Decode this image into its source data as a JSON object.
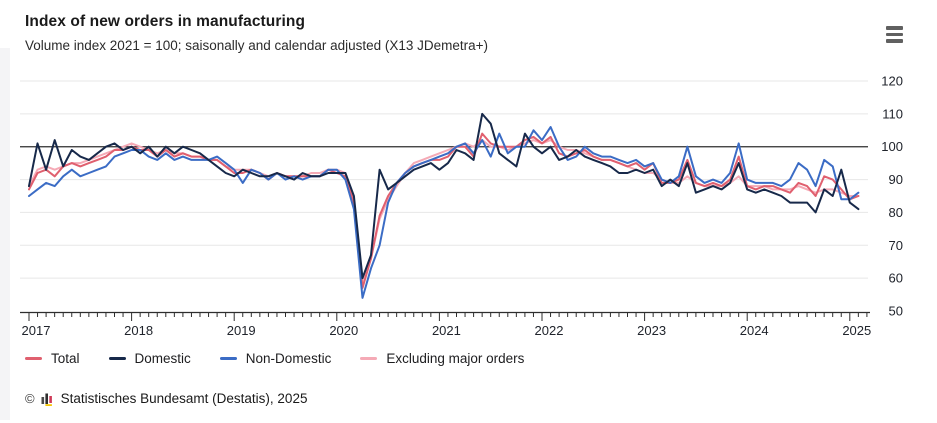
{
  "header": {
    "title": "Index of new orders in manufacturing",
    "subtitle": "Volume index 2021 = 100; saisonally and calendar adjusted (X13 JDemetra+)"
  },
  "chart_data": {
    "type": "line",
    "title": "Index of new orders in manufacturing",
    "subtitle": "Volume index 2021 = 100; saisonally and calendar adjusted (X13 JDemetra+)",
    "x_start": "2017-01",
    "x_freq": "monthly",
    "x_tick_labels": [
      "2017",
      "2018",
      "2019",
      "2020",
      "2021",
      "2022",
      "2023",
      "2024",
      "2025"
    ],
    "ylabel": "",
    "xlabel": "",
    "ylim": [
      50,
      120
    ],
    "y_ticks": [
      50,
      60,
      70,
      80,
      90,
      100,
      110,
      120
    ],
    "reference_line": 100,
    "grid": "horizontal",
    "legend_position": "bottom",
    "colors": {
      "grid": "#e7e7e7",
      "axis": "#2e2e2e",
      "reference": "#2e2e2e",
      "tick_label": "#20242c"
    },
    "draw_order": [
      3,
      0,
      2,
      1
    ],
    "series": [
      {
        "name": "Total",
        "color": "#e0606f",
        "values": [
          87,
          92,
          93,
          91,
          94,
          95,
          94,
          95,
          96,
          97,
          99,
          99,
          100,
          99,
          99,
          97,
          99,
          97,
          98,
          97,
          97,
          96,
          96,
          94,
          92,
          92,
          93,
          92,
          90,
          92,
          91,
          91,
          91,
          91,
          91,
          93,
          92,
          91,
          83,
          57,
          66,
          79,
          85,
          89,
          92,
          94,
          95,
          96,
          96,
          97,
          100,
          100,
          97,
          104,
          101,
          100,
          100,
          100,
          102,
          103,
          101,
          103,
          98,
          97,
          98,
          99,
          97,
          96,
          96,
          95,
          94,
          95,
          93,
          95,
          89,
          89,
          90,
          96,
          89,
          88,
          89,
          88,
          90,
          97,
          88,
          87,
          88,
          88,
          87,
          86,
          89,
          88,
          85,
          91,
          90,
          87,
          84,
          85
        ]
      },
      {
        "name": "Domestic",
        "color": "#17294a",
        "values": [
          88,
          101,
          93,
          102,
          94,
          99,
          97,
          96,
          98,
          100,
          101,
          99,
          100,
          98,
          100,
          97,
          100,
          98,
          100,
          99,
          98,
          96,
          94,
          92,
          91,
          93,
          92,
          91,
          91,
          92,
          91,
          90,
          92,
          91,
          91,
          92,
          92,
          92,
          85,
          60,
          67,
          93,
          87,
          89,
          91,
          93,
          94,
          95,
          93,
          95,
          99,
          98,
          96,
          110,
          107,
          98,
          96,
          94,
          104,
          100,
          98,
          100,
          96,
          97,
          99,
          97,
          96,
          95,
          94,
          92,
          92,
          93,
          92,
          93,
          88,
          90,
          88,
          95,
          86,
          87,
          88,
          87,
          89,
          95,
          87,
          86,
          87,
          86,
          85,
          83,
          83,
          83,
          80,
          87,
          85,
          93,
          83,
          81
        ]
      },
      {
        "name": "Non-Domestic",
        "color": "#3b6cc5",
        "values": [
          85,
          87,
          89,
          88,
          91,
          93,
          91,
          92,
          93,
          94,
          97,
          98,
          99,
          99,
          97,
          96,
          98,
          96,
          97,
          96,
          96,
          96,
          97,
          95,
          93,
          89,
          93,
          92,
          90,
          92,
          90,
          91,
          90,
          91,
          91,
          93,
          93,
          90,
          81,
          54,
          63,
          70,
          83,
          89,
          92,
          94,
          95,
          96,
          97,
          98,
          100,
          101,
          98,
          102,
          97,
          104,
          98,
          100,
          100,
          105,
          102,
          106,
          100,
          96,
          97,
          100,
          98,
          97,
          97,
          96,
          95,
          96,
          94,
          95,
          90,
          89,
          91,
          100,
          91,
          89,
          90,
          89,
          92,
          101,
          90,
          89,
          89,
          89,
          88,
          90,
          95,
          93,
          88,
          96,
          94,
          84,
          84,
          86
        ]
      },
      {
        "name": "Excluding major orders",
        "color": "#f5aab6",
        "values": [
          88,
          93,
          94,
          93,
          94,
          95,
          95,
          96,
          97,
          98,
          99,
          100,
          101,
          100,
          99,
          98,
          99,
          98,
          98,
          97,
          97,
          96,
          96,
          94,
          93,
          93,
          93,
          92,
          91,
          92,
          91,
          91,
          91,
          92,
          92,
          93,
          93,
          92,
          84,
          58,
          66,
          78,
          84,
          88,
          92,
          95,
          96,
          97,
          98,
          99,
          100,
          101,
          100,
          102,
          100,
          100,
          99,
          100,
          101,
          102,
          101,
          102,
          100,
          99,
          99,
          98,
          97,
          96,
          96,
          95,
          94,
          93,
          92,
          92,
          90,
          89,
          89,
          91,
          89,
          88,
          88,
          88,
          89,
          91,
          88,
          88,
          88,
          87,
          87,
          87,
          88,
          87,
          86,
          87,
          87,
          86,
          85,
          85
        ]
      }
    ]
  },
  "footer": {
    "copyright": "©",
    "text": "Statistisches Bundesamt (Destatis), 2025"
  }
}
